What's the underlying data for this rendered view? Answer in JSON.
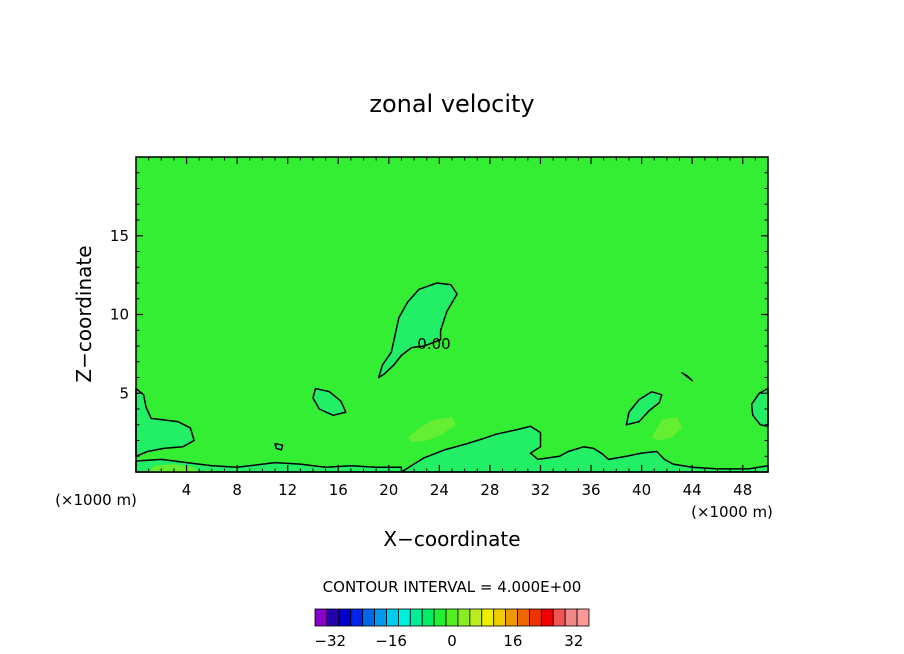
{
  "chart_data": {
    "type": "heatmap",
    "title": "zonal velocity",
    "xlabel": "X−coordinate",
    "ylabel": "Z−coordinate",
    "x_unit_left": "(×1000 m)",
    "x_unit_right": "(×1000 m)",
    "xlim": [
      0,
      50
    ],
    "ylim": [
      0,
      20
    ],
    "xticks": [
      4,
      8,
      12,
      16,
      20,
      24,
      28,
      32,
      36,
      40,
      44,
      48
    ],
    "xtick_labels": [
      "4",
      "8",
      "12",
      "16",
      "20",
      "24",
      "28",
      "32",
      "36",
      "40",
      "44",
      "48"
    ],
    "yticks": [
      5,
      10,
      15
    ],
    "ytick_labels": [
      "5",
      "10",
      "15"
    ],
    "background_color": "#33ee33",
    "contour_label": "0.00",
    "contour_interval_text": "CONTOUR INTERVAL = 4.000E+00",
    "colorbar": {
      "min": -36,
      "max": 36,
      "step": 4,
      "colors": [
        "#8800cc",
        "#2200aa",
        "#0000cc",
        "#0022ee",
        "#0066ee",
        "#0099ee",
        "#00ccee",
        "#00eedd",
        "#00ee99",
        "#00ee66",
        "#22ee33",
        "#55ee22",
        "#88ee22",
        "#bbee22",
        "#eeee00",
        "#eecc00",
        "#ee9900",
        "#ee6600",
        "#ee3300",
        "#ee0000",
        "#ee5555",
        "#ee8888",
        "#ff9999"
      ],
      "tick_values": [
        -32,
        -16,
        0,
        16,
        32
      ],
      "tick_labels": [
        "−32",
        "−16",
        "0",
        "16",
        "32"
      ]
    },
    "regions": [
      {
        "name": "central-upper-blob",
        "fill": "#22ee66",
        "outline": true,
        "points": [
          [
            19.2,
            6.0
          ],
          [
            19.5,
            6.8
          ],
          [
            20.2,
            7.6
          ],
          [
            20.5,
            8.7
          ],
          [
            20.8,
            9.8
          ],
          [
            21.5,
            10.8
          ],
          [
            22.4,
            11.6
          ],
          [
            23.8,
            12.0
          ],
          [
            24.9,
            11.9
          ],
          [
            25.4,
            11.3
          ],
          [
            24.6,
            10.2
          ],
          [
            24.1,
            9.0
          ],
          [
            24.1,
            8.4
          ],
          [
            22.8,
            8.0
          ],
          [
            21.8,
            7.9
          ],
          [
            21.0,
            7.4
          ],
          [
            20.4,
            6.8
          ],
          [
            19.6,
            6.2
          ]
        ]
      },
      {
        "name": "left-lower-blob",
        "fill": "#22ee66",
        "outline": true,
        "points": [
          [
            0,
            5.3
          ],
          [
            0.6,
            4.9
          ],
          [
            0.8,
            4.1
          ],
          [
            1.2,
            3.4
          ],
          [
            3.3,
            3.2
          ],
          [
            4.3,
            2.8
          ],
          [
            4.6,
            2.0
          ],
          [
            3.7,
            1.6
          ],
          [
            2.2,
            1.5
          ],
          [
            0.9,
            1.3
          ],
          [
            0,
            1.0
          ]
        ]
      },
      {
        "name": "blob-x14",
        "fill": "#22ee66",
        "outline": true,
        "points": [
          [
            14.2,
            5.3
          ],
          [
            15.3,
            5.1
          ],
          [
            16.2,
            4.5
          ],
          [
            16.6,
            3.8
          ],
          [
            15.6,
            3.6
          ],
          [
            14.5,
            4.0
          ],
          [
            14.0,
            4.7
          ]
        ]
      },
      {
        "name": "blob-x39",
        "fill": "#22ee66",
        "outline": true,
        "points": [
          [
            38.8,
            3.0
          ],
          [
            39.0,
            3.8
          ],
          [
            39.8,
            4.6
          ],
          [
            40.8,
            5.1
          ],
          [
            41.6,
            4.9
          ],
          [
            41.4,
            4.4
          ],
          [
            40.6,
            3.9
          ],
          [
            39.8,
            3.2
          ]
        ]
      },
      {
        "name": "right-edge-blob",
        "fill": "#22ee66",
        "outline": true,
        "points": [
          [
            50,
            5.3
          ],
          [
            49.3,
            5.0
          ],
          [
            48.7,
            4.3
          ],
          [
            48.8,
            3.6
          ],
          [
            49.4,
            3.0
          ],
          [
            50,
            2.9
          ]
        ]
      },
      {
        "name": "lower-ridge",
        "fill": "#22ee66",
        "outline": true,
        "points": [
          [
            21,
            0
          ],
          [
            22.8,
            0.9
          ],
          [
            24.4,
            1.4
          ],
          [
            26.2,
            1.8
          ],
          [
            27.4,
            2.1
          ],
          [
            28.5,
            2.4
          ],
          [
            30.2,
            2.7
          ],
          [
            31.2,
            2.9
          ],
          [
            32.0,
            2.5
          ],
          [
            32.0,
            1.6
          ],
          [
            31.2,
            1.2
          ],
          [
            31.8,
            0.8
          ],
          [
            33.5,
            1.0
          ],
          [
            34.2,
            1.3
          ],
          [
            35.4,
            1.6
          ],
          [
            36.2,
            1.5
          ],
          [
            36.8,
            1.2
          ],
          [
            37.4,
            0.8
          ],
          [
            38.8,
            1.0
          ],
          [
            40.0,
            1.2
          ],
          [
            41.2,
            1.3
          ],
          [
            41.8,
            0.8
          ],
          [
            42.5,
            0.5
          ],
          [
            44,
            0.3
          ],
          [
            46,
            0.2
          ],
          [
            48.5,
            0.2
          ],
          [
            50,
            0.4
          ],
          [
            50,
            0
          ],
          [
            21,
            0
          ]
        ]
      },
      {
        "name": "surface-layer",
        "fill": "#22ee66",
        "outline": true,
        "points": [
          [
            0,
            0
          ],
          [
            0,
            0.7
          ],
          [
            2,
            0.8
          ],
          [
            4,
            0.6
          ],
          [
            6,
            0.4
          ],
          [
            8,
            0.3
          ],
          [
            11,
            0.6
          ],
          [
            13,
            0.5
          ],
          [
            15,
            0.3
          ],
          [
            17,
            0.4
          ],
          [
            19,
            0.3
          ],
          [
            21,
            0.3
          ],
          [
            21,
            0
          ]
        ]
      },
      {
        "name": "light-patch-center",
        "fill": "#66ee33",
        "outline": false,
        "points": [
          [
            21.5,
            2.2
          ],
          [
            22.4,
            2.8
          ],
          [
            23.5,
            3.3
          ],
          [
            25.0,
            3.5
          ],
          [
            25.3,
            3.0
          ],
          [
            24.2,
            2.4
          ],
          [
            23.0,
            2.0
          ],
          [
            21.8,
            1.9
          ]
        ]
      },
      {
        "name": "light-patch-right",
        "fill": "#66ee33",
        "outline": false,
        "points": [
          [
            40.8,
            2.2
          ],
          [
            41.6,
            3.3
          ],
          [
            42.8,
            3.5
          ],
          [
            43.2,
            2.8
          ],
          [
            42.4,
            2.2
          ],
          [
            41.4,
            2.0
          ]
        ]
      },
      {
        "name": "light-patch-surface",
        "fill": "#66ee33",
        "outline": false,
        "points": [
          [
            1,
            0
          ],
          [
            1.5,
            0.4
          ],
          [
            3.0,
            0.5
          ],
          [
            4.5,
            0.3
          ],
          [
            5,
            0
          ]
        ]
      },
      {
        "name": "small-islet-top",
        "fill": "#22ee66",
        "outline": true,
        "points": [
          [
            43.2,
            6.3
          ],
          [
            43.7,
            6.0
          ],
          [
            44.0,
            5.8
          ],
          [
            43.6,
            6.1
          ]
        ]
      },
      {
        "name": "small-islet-mid",
        "fill": "#22ee66",
        "outline": true,
        "points": [
          [
            11.0,
            1.8
          ],
          [
            11.6,
            1.7
          ],
          [
            11.5,
            1.4
          ],
          [
            11.1,
            1.5
          ]
        ]
      }
    ]
  }
}
